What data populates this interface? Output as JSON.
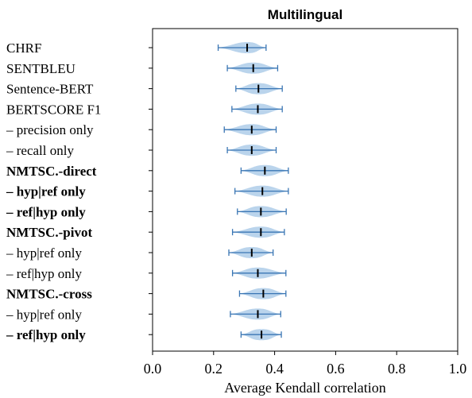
{
  "chart_data": {
    "type": "violin",
    "title": "Multilingual",
    "xlabel": "Average Kendall correlation",
    "ylabel": "",
    "xlim": [
      0.0,
      1.0
    ],
    "xticks": [
      "0.0",
      "0.2",
      "0.4",
      "0.6",
      "0.8",
      "1.0"
    ],
    "grid": false,
    "colors": {
      "violin": "#aecde9",
      "whisker": "#3a76b4",
      "median": "#000000"
    },
    "categories": [
      {
        "label": "CHRF",
        "bold": false,
        "min": 0.215,
        "median": 0.31,
        "max": 0.372
      },
      {
        "label": "SENTBLEU",
        "bold": false,
        "min": 0.245,
        "median": 0.33,
        "max": 0.41
      },
      {
        "label": "Sentence-BERT",
        "bold": false,
        "min": 0.273,
        "median": 0.347,
        "max": 0.425
      },
      {
        "label": "BERTSCORE F1",
        "bold": false,
        "min": 0.26,
        "median": 0.345,
        "max": 0.425
      },
      {
        "label": "– precision only",
        "bold": false,
        "min": 0.235,
        "median": 0.325,
        "max": 0.405
      },
      {
        "label": "– recall only",
        "bold": false,
        "min": 0.245,
        "median": 0.325,
        "max": 0.405
      },
      {
        "label": "NMTSC.-direct",
        "bold": true,
        "min": 0.29,
        "median": 0.368,
        "max": 0.445
      },
      {
        "label": "– hyp|ref only",
        "bold": true,
        "min": 0.27,
        "median": 0.36,
        "max": 0.445
      },
      {
        "label": "– ref|hyp only",
        "bold": true,
        "min": 0.278,
        "median": 0.355,
        "max": 0.438
      },
      {
        "label": "NMTSC.-pivot",
        "bold": true,
        "min": 0.262,
        "median": 0.355,
        "max": 0.432
      },
      {
        "label": "– hyp|ref only",
        "bold": false,
        "min": 0.25,
        "median": 0.325,
        "max": 0.395
      },
      {
        "label": "– ref|hyp only",
        "bold": false,
        "min": 0.262,
        "median": 0.345,
        "max": 0.437
      },
      {
        "label": "NMTSC.-cross",
        "bold": true,
        "min": 0.285,
        "median": 0.363,
        "max": 0.437
      },
      {
        "label": "– hyp|ref only",
        "bold": false,
        "min": 0.255,
        "median": 0.345,
        "max": 0.42
      },
      {
        "label": "– ref|hyp only",
        "bold": true,
        "min": 0.29,
        "median": 0.357,
        "max": 0.422
      }
    ]
  }
}
